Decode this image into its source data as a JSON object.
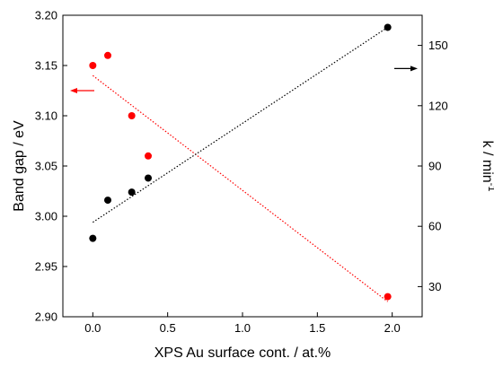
{
  "chart_data": {
    "type": "scatter",
    "xlabel": "XPS Au surface cont. / at.%",
    "ylabel_left": "Band gap / eV",
    "ylabel_right_main": "k / min",
    "ylabel_right_sup": "-1",
    "xlim": [
      -0.2,
      2.2
    ],
    "ylim_left": [
      2.9,
      3.2
    ],
    "ylim_right": [
      15,
      165
    ],
    "x_ticks": [
      0.0,
      0.5,
      1.0,
      1.5,
      2.0
    ],
    "x_tick_labels": [
      "0.0",
      "0.5",
      "1.0",
      "1.5",
      "2.0"
    ],
    "y_left_ticks": [
      2.9,
      2.95,
      3.0,
      3.05,
      3.1,
      3.15,
      3.2
    ],
    "y_left_tick_labels": [
      "2.90",
      "2.95",
      "3.00",
      "3.05",
      "3.10",
      "3.15",
      "3.20"
    ],
    "y_right_ticks": [
      30,
      60,
      90,
      120,
      150
    ],
    "y_right_tick_labels": [
      "30",
      "60",
      "90",
      "120",
      "150"
    ],
    "grid": false,
    "legend": "none",
    "series": [
      {
        "axis": "left",
        "color": "#ff0000",
        "x": [
          0.0,
          0.1,
          0.26,
          0.37,
          1.97
        ],
        "y": [
          3.15,
          3.16,
          3.1,
          3.06,
          2.92
        ],
        "fit": {
          "x": [
            0.0,
            1.97
          ],
          "y": [
            3.14,
            2.915
          ]
        }
      },
      {
        "axis": "right",
        "color": "#000000",
        "x": [
          0.0,
          0.1,
          0.26,
          0.37,
          1.97
        ],
        "y": [
          54,
          73,
          77,
          84,
          159
        ],
        "fit": {
          "x": [
            0.0,
            1.97
          ],
          "y": [
            62,
            159
          ]
        }
      }
    ],
    "annotations": [
      {
        "type": "arrow",
        "direction": "left",
        "color": "#ff0000",
        "meaning": "left-axis series"
      },
      {
        "type": "arrow",
        "direction": "right",
        "color": "#000000",
        "meaning": "right-axis series"
      }
    ]
  }
}
